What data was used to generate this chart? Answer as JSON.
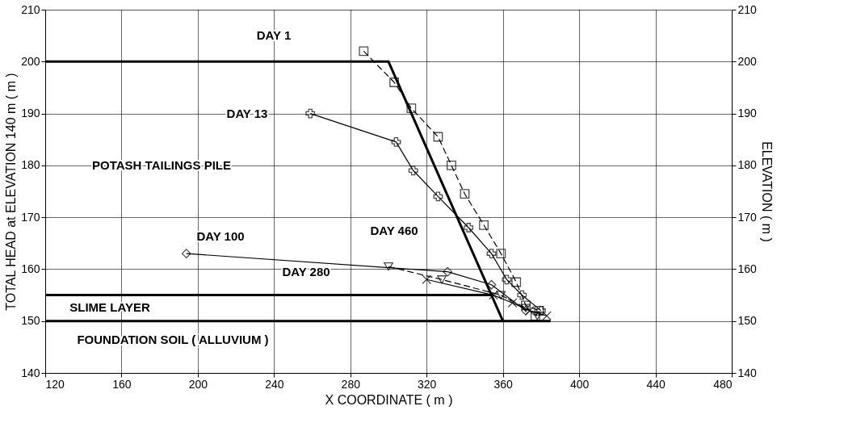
{
  "chart_data": {
    "type": "line",
    "xlabel": "X   COORDINATE ( m )",
    "ylabel": "TOTAL HEAD at ELEVATION 140 m ( m )",
    "y2label": "ELEVATION  ( m )",
    "xlim": [
      120,
      480
    ],
    "xticks": [
      120,
      160,
      200,
      240,
      280,
      320,
      360,
      400,
      440,
      480
    ],
    "ylim": [
      140,
      210
    ],
    "yticks": [
      140,
      150,
      160,
      170,
      180,
      190,
      200,
      210
    ],
    "y2lim": [
      140,
      210
    ],
    "y2ticks": [
      140,
      150,
      160,
      170,
      180,
      190,
      200,
      210
    ],
    "grid": true,
    "series": [
      {
        "color": "#000000",
        "line_style": "solid",
        "x": [
          120,
          300,
          360
        ],
        "values": [
          200,
          200,
          150
        ]
      },
      {
        "color": "#000000",
        "line_style": "solid",
        "x": [
          120,
          355
        ],
        "values": [
          155,
          155
        ]
      },
      {
        "color": "#000000",
        "line_style": "solid",
        "x": [
          120,
          385
        ],
        "values": [
          150,
          150
        ]
      },
      {
        "color": "#000000",
        "marker": "square",
        "line_style": "dashed",
        "x": [
          287,
          303,
          312,
          326,
          333,
          340,
          350,
          359,
          367,
          372,
          379,
          377
        ],
        "values": [
          202,
          196,
          191,
          185.5,
          180,
          174.5,
          168.5,
          163,
          157.5,
          153,
          152,
          151
        ]
      },
      {
        "color": "#000000",
        "marker": "cross",
        "line_style": "solid",
        "x": [
          259,
          304,
          313,
          326,
          342,
          354,
          362,
          370,
          380
        ],
        "values": [
          190,
          184.5,
          179,
          174,
          168,
          163,
          158,
          155,
          152
        ]
      },
      {
        "color": "#000000",
        "marker": "diamond",
        "line_style": "solid",
        "x": [
          194,
          331,
          354,
          372
        ],
        "values": [
          163,
          159.5,
          157,
          152
        ]
      },
      {
        "color": "#000000",
        "marker": "x",
        "line_style": "solid",
        "x": [
          320,
          355,
          365,
          374,
          383
        ],
        "values": [
          158,
          155,
          153.5,
          152,
          151
        ]
      },
      {
        "color": "#000000",
        "marker": "triangle-down",
        "line_style": "dashed",
        "x": [
          300,
          328,
          359,
          372,
          378
        ],
        "values": [
          160.5,
          158,
          155,
          152.5,
          151
        ]
      }
    ],
    "annotations": [
      "DAY 1",
      "DAY 13",
      "POTASH TAILINGS PILE",
      "DAY 100",
      "DAY 460",
      "DAY 280",
      "SLIME LAYER",
      "FOUNDATION SOIL  ( ALLUVIUM )"
    ]
  }
}
